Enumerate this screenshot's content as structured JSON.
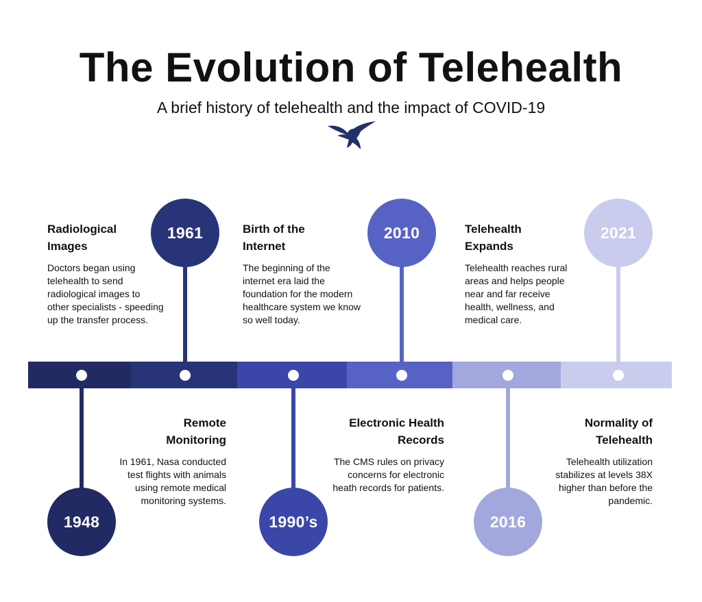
{
  "title": "The Evolution of Telehealth",
  "subtitle": "A brief history of telehealth and the impact of COVID-19",
  "colors": {
    "c1": "#222a63",
    "c2": "#283478",
    "c3": "#3a47a9",
    "c4": "#5763c4",
    "c5": "#a2a8de",
    "c6": "#c9ccec"
  },
  "timeline": [
    {
      "year": "1948",
      "color": "#222a63"
    },
    {
      "year": "1961",
      "color": "#283478"
    },
    {
      "year": "1990’s",
      "color": "#3a47a9"
    },
    {
      "year": "2010",
      "color": "#5763c4"
    },
    {
      "year": "2016",
      "color": "#a2a8de"
    },
    {
      "year": "2021",
      "color": "#c9ccec"
    }
  ],
  "events": [
    {
      "heading": "Radiological Images",
      "text": "Doctors began using telehealth to send radiological images to other specialists - speeding up the transfer process."
    },
    {
      "heading": "Remote Monitoring",
      "text": "In 1961, Nasa conducted test flights with animals using remote medical monitoring systems."
    },
    {
      "heading": "Birth of the Internet",
      "text": "The beginning of the internet era laid the foundation for the modern healthcare system we know so well today."
    },
    {
      "heading": "Electronic Health Records",
      "text": "The CMS rules on privacy concerns for electronic heath records for patients."
    },
    {
      "heading": "Telehealth Expands",
      "text": "Telehealth reaches rural areas and helps people near and far receive health, wellness, and medical care."
    },
    {
      "heading": "Normality of Telehealth",
      "text": "Telehealth utilization stabilizes at levels 38X higher than before the pandemic."
    }
  ]
}
